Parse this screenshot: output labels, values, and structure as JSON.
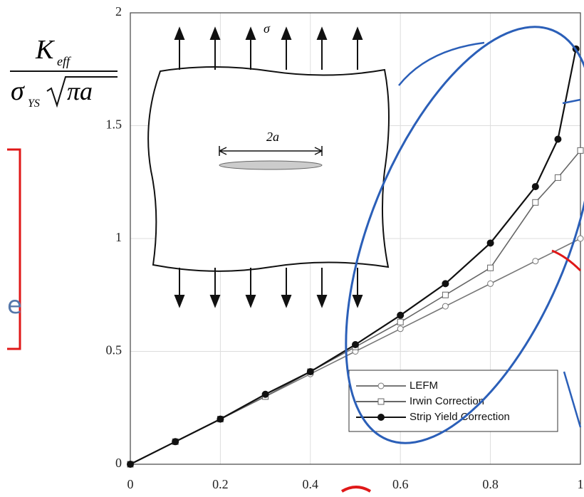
{
  "chart_data": {
    "type": "line",
    "ylabel": {
      "numerator": "K",
      "numerator_sub": "eff",
      "denominator": "σ",
      "denominator_sub": "YS",
      "root": "πa"
    },
    "diagram": {
      "stress": "σ",
      "crack": "2a"
    },
    "xlim": [
      0,
      1
    ],
    "ylim": [
      0,
      2
    ],
    "xticks": [
      0,
      0.2,
      0.4,
      0.6,
      0.8,
      1
    ],
    "yticks": [
      0,
      0.5,
      1,
      1.5,
      2
    ],
    "grid": true,
    "legend": "lower right",
    "series": [
      {
        "name": "LEFM",
        "color": "#777777",
        "marker": "open-circle",
        "x": [
          0,
          0.1,
          0.2,
          0.3,
          0.4,
          0.5,
          0.6,
          0.7,
          0.8,
          0.9,
          1
        ],
        "values": [
          0,
          0.1,
          0.2,
          0.3,
          0.4,
          0.5,
          0.6,
          0.7,
          0.8,
          0.9,
          1
        ]
      },
      {
        "name": "Irwin Correction",
        "color": "#666666",
        "marker": "open-square",
        "x": [
          0,
          0.1,
          0.2,
          0.3,
          0.4,
          0.5,
          0.6,
          0.7,
          0.8,
          0.9,
          0.95,
          1
        ],
        "values": [
          0,
          0.1,
          0.2,
          0.3,
          0.41,
          0.52,
          0.63,
          0.75,
          0.87,
          1.16,
          1.27,
          1.39
        ]
      },
      {
        "name": "Strip Yield Correction",
        "color": "#111111",
        "marker": "filled-circle",
        "x": [
          0,
          0.1,
          0.2,
          0.3,
          0.4,
          0.5,
          0.6,
          0.7,
          0.8,
          0.9,
          0.95,
          0.99
        ],
        "values": [
          0,
          0.1,
          0.2,
          0.31,
          0.41,
          0.53,
          0.66,
          0.8,
          0.98,
          1.23,
          1.44,
          1.84
        ]
      }
    ]
  }
}
